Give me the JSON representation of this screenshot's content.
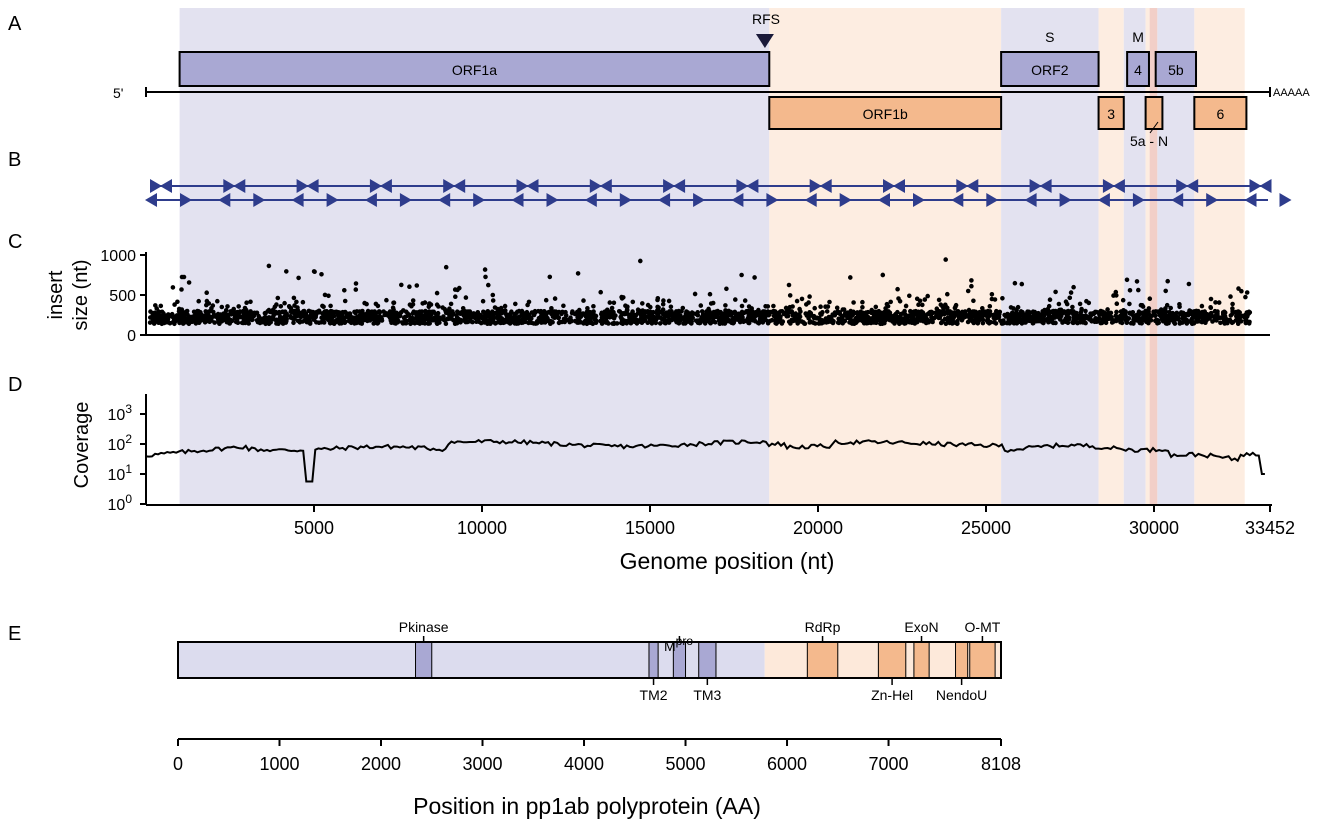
{
  "colors": {
    "purple_band": "#e3e2f0",
    "orange_band": "#fdede1",
    "purple_box": "#a9a8d3",
    "orange_box": "#f4b98d",
    "pink_band": "#f2cfc8",
    "light_purple_bar": "#dcdcee",
    "light_orange_bar": "#fde9da",
    "arrow_blue": "#2e3c8c"
  },
  "panel_labels": [
    "A",
    "B",
    "C",
    "D",
    "E"
  ],
  "genome": {
    "length": 33452,
    "five_prime": "5'",
    "poly_a": "AAAAA",
    "rfs_label": "RFS",
    "rfs_position": 18420,
    "bands": [
      {
        "start": 1000,
        "end": 18550,
        "color": "purple"
      },
      {
        "start": 18550,
        "end": 25450,
        "color": "orange"
      },
      {
        "start": 25450,
        "end": 28350,
        "color": "purple"
      },
      {
        "start": 28350,
        "end": 29100,
        "color": "orange"
      },
      {
        "start": 29100,
        "end": 29750,
        "color": "purple"
      },
      {
        "start": 29750,
        "end": 29870,
        "color": "orange"
      },
      {
        "start": 29870,
        "end": 30100,
        "color": "pink"
      },
      {
        "start": 30100,
        "end": 31200,
        "color": "purple"
      },
      {
        "start": 31200,
        "end": 32700,
        "color": "orange"
      }
    ],
    "orfs_top": [
      {
        "label": "ORF1a",
        "start": 1000,
        "end": 18550,
        "above": ""
      },
      {
        "label": "ORF2",
        "start": 25450,
        "end": 28350,
        "above": "S"
      },
      {
        "label": "4",
        "start": 29200,
        "end": 29850,
        "above": "M"
      },
      {
        "label": "5b",
        "start": 30050,
        "end": 31250,
        "above": ""
      }
    ],
    "orfs_bottom": [
      {
        "label": "ORF1b",
        "start": 18550,
        "end": 25450
      },
      {
        "label": "3",
        "start": 28350,
        "end": 29100
      },
      {
        "label": "",
        "start": 29750,
        "end": 30250
      },
      {
        "label": "6",
        "start": 31200,
        "end": 32750
      }
    ],
    "orf5a_label": "5a - N"
  },
  "panel_c": {
    "ylabel_line1": "insert",
    "ylabel_line2": "size (nt)",
    "yticks": [
      "0",
      "500",
      "1000"
    ],
    "ylim": [
      0,
      1000
    ]
  },
  "panel_d": {
    "ylabel": "Coverage",
    "yticks": [
      {
        "base": "10",
        "exp": "0"
      },
      {
        "base": "10",
        "exp": "1"
      },
      {
        "base": "10",
        "exp": "2"
      },
      {
        "base": "10",
        "exp": "3"
      }
    ]
  },
  "genome_axis": {
    "ticks": [
      "5000",
      "10000",
      "15000",
      "20000",
      "25000",
      "30000",
      "33452"
    ],
    "xlabel": "Genome position (nt)"
  },
  "protein": {
    "length": 8108,
    "split": 5780,
    "domains": [
      {
        "start": 2340,
        "end": 2500,
        "color": "purple",
        "label": "Pkinase",
        "side": "above"
      },
      {
        "start": 4640,
        "end": 4730,
        "color": "purple",
        "label": "TM2",
        "side": "below"
      },
      {
        "start": 4880,
        "end": 5000,
        "color": "purple",
        "label": "",
        "side": ""
      },
      {
        "start": 5130,
        "end": 5300,
        "color": "purple",
        "label": "TM3",
        "side": "below"
      },
      {
        "start": 6200,
        "end": 6500,
        "color": "orange",
        "label": "RdRp",
        "side": "above"
      },
      {
        "start": 6900,
        "end": 7170,
        "color": "orange",
        "label": "Zn-Hel",
        "side": "below"
      },
      {
        "start": 7250,
        "end": 7400,
        "color": "orange",
        "label": "ExoN",
        "side": "above"
      },
      {
        "start": 7660,
        "end": 7780,
        "color": "orange",
        "label": "NendoU",
        "side": "below"
      },
      {
        "start": 7800,
        "end": 8050,
        "color": "orange",
        "label": "O-MT",
        "side": "above"
      }
    ],
    "mpro_base": "M",
    "mpro_sup": "pro",
    "mpro_position": 4940,
    "axis_ticks": [
      "0",
      "1000",
      "2000",
      "3000",
      "4000",
      "5000",
      "6000",
      "7000",
      "8108"
    ],
    "xlabel": "Position in pp1ab polyprotein (AA)"
  }
}
